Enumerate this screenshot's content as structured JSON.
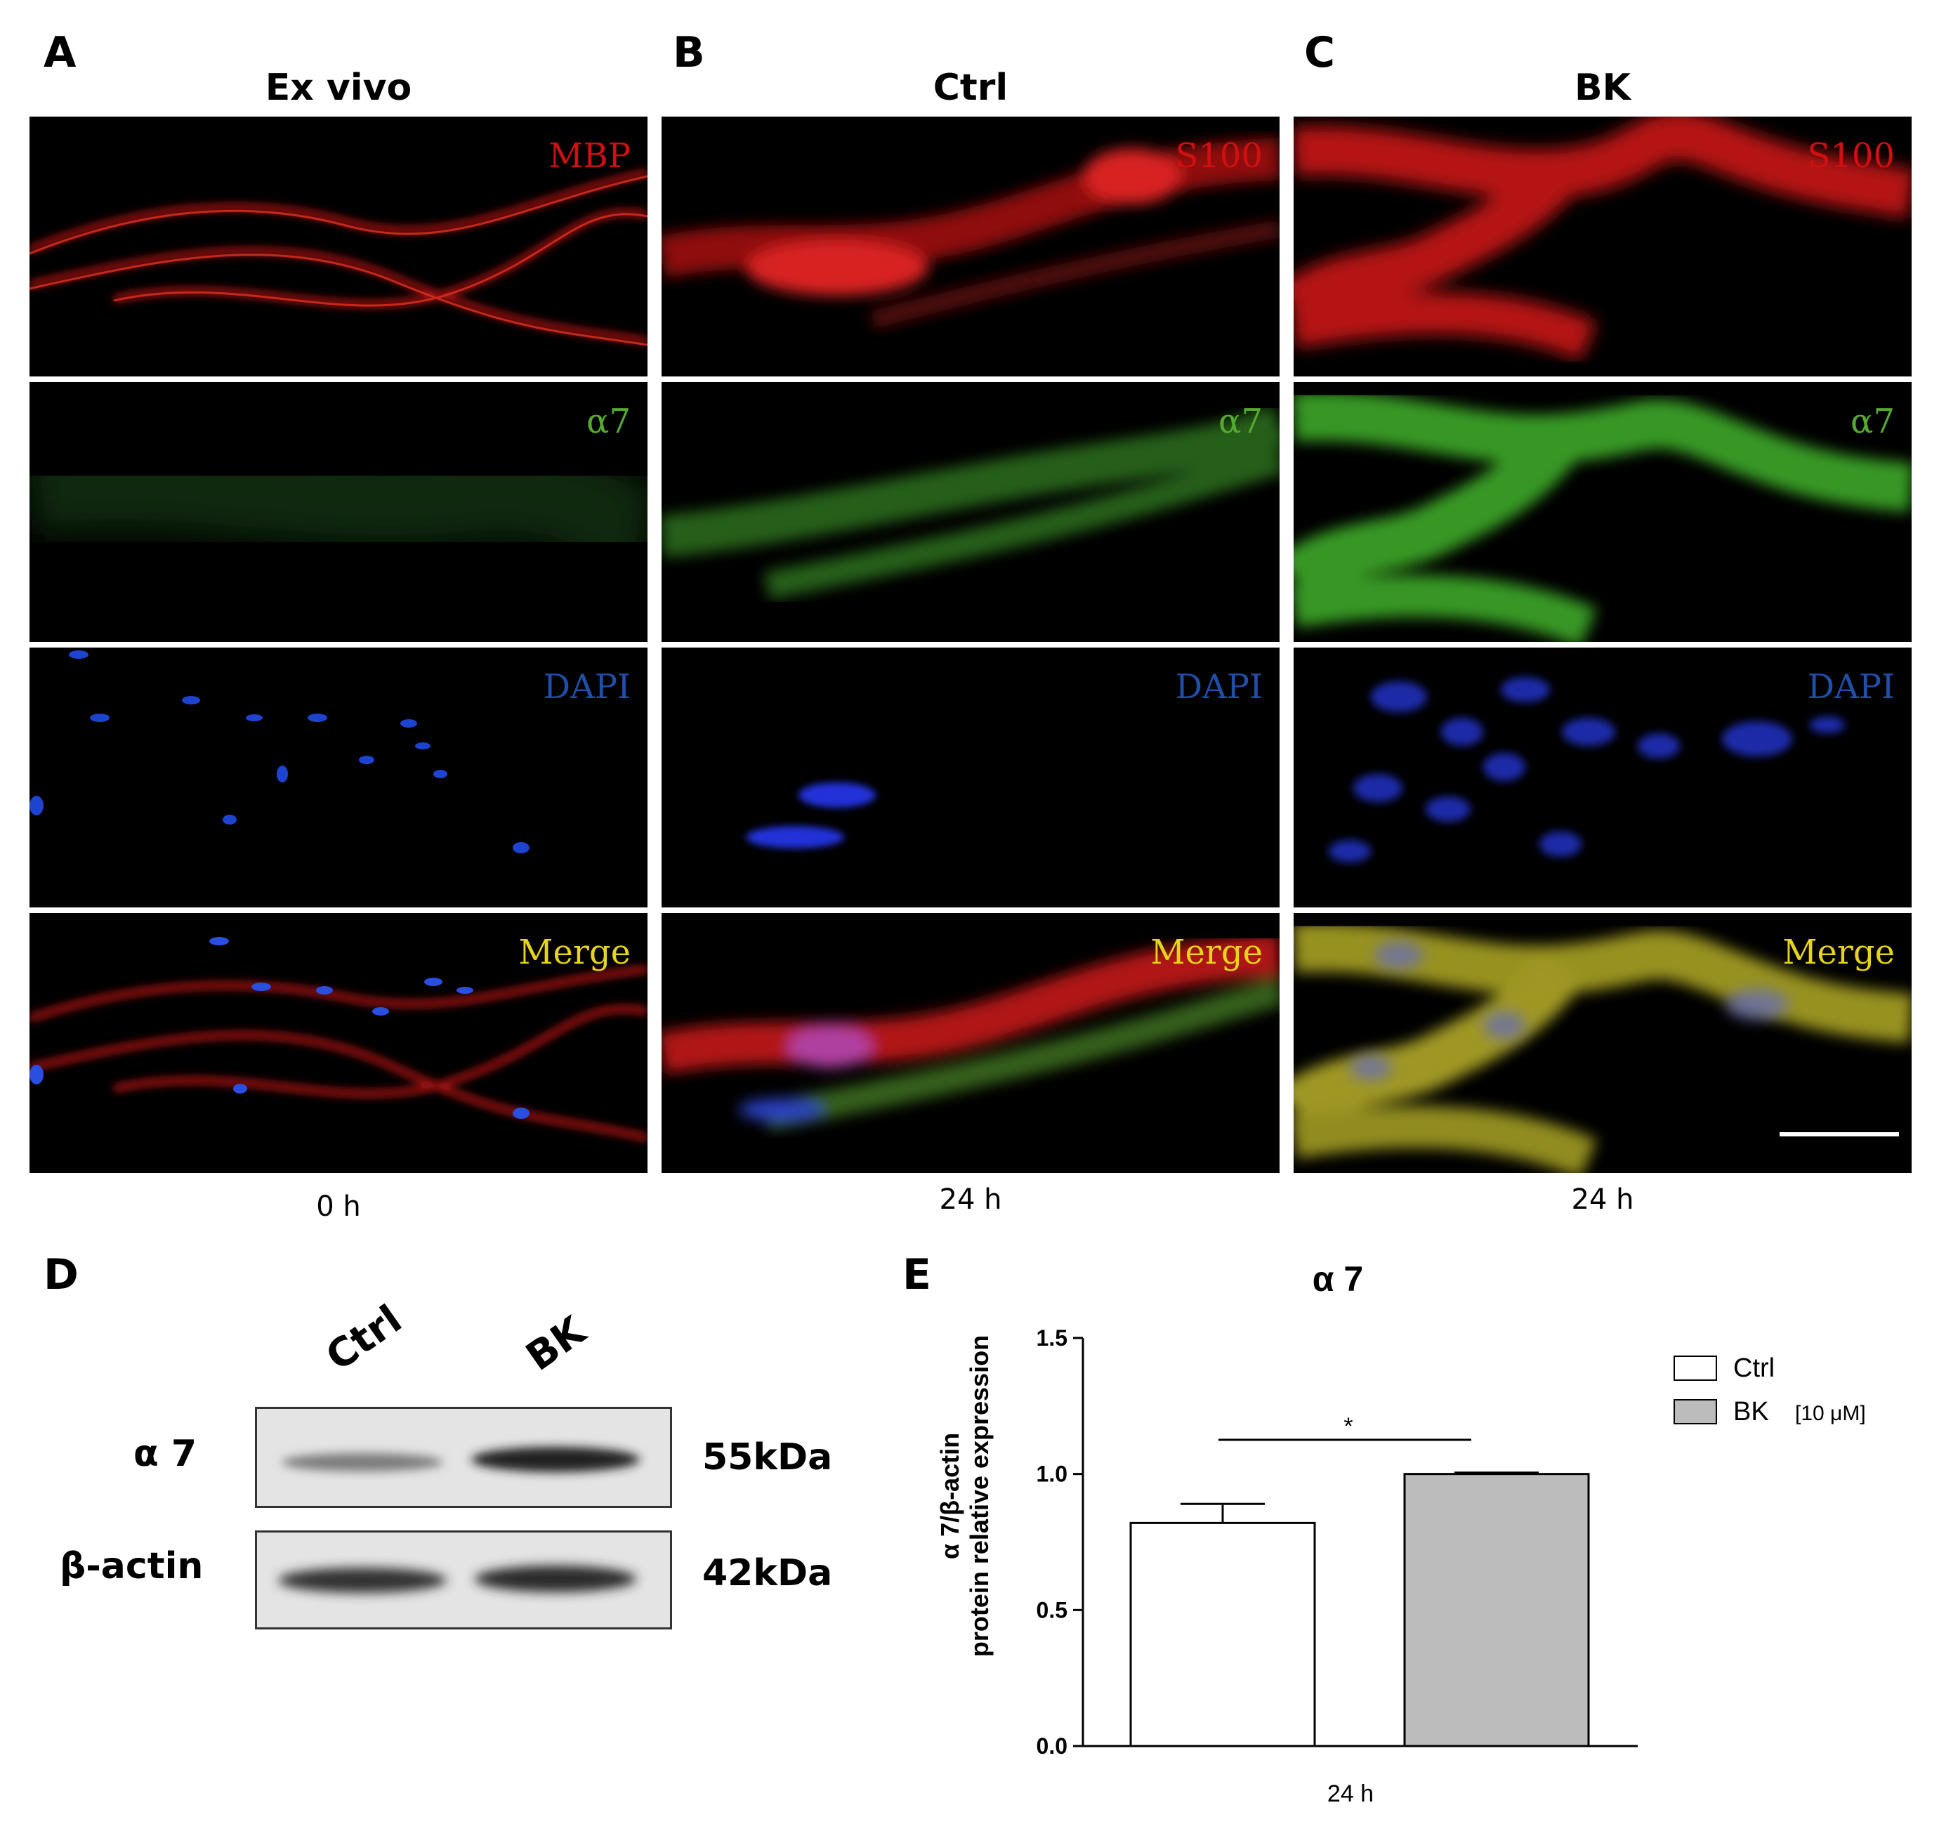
{
  "panels": {
    "A": {
      "letter": "A",
      "title": "Ex vivo",
      "time": "0 h",
      "labels": [
        "MBP",
        "α7",
        "DAPI",
        "Merge"
      ]
    },
    "B": {
      "letter": "B",
      "title": "Ctrl",
      "time": "24 h",
      "labels": [
        "S100",
        "α7",
        "DAPI",
        "Merge"
      ]
    },
    "C": {
      "letter": "C",
      "title": "BK",
      "time": "24 h",
      "labels": [
        "S100",
        "α7",
        "DAPI",
        "Merge"
      ]
    }
  },
  "channel_colors": {
    "red": "#d01010",
    "green": "#55a830",
    "blue": "#1f4fa8",
    "yellow": "#e6d41a"
  },
  "blot": {
    "letter": "D",
    "lanes": [
      "Ctrl",
      "BK"
    ],
    "rows": [
      {
        "protein": "α 7",
        "size": "55kDa"
      },
      {
        "protein": "β-actin",
        "size": "42kDa"
      }
    ]
  },
  "chart_data": {
    "letter": "E",
    "type": "bar",
    "title": "α 7",
    "ylabel_line1": "α 7/β-actin",
    "ylabel_line2": "protein relative expression",
    "xlabel": "24 h",
    "ylim": [
      0,
      1.5
    ],
    "yticks": [
      "0.0",
      "0.5",
      "1.0",
      "1.5"
    ],
    "categories": [
      "Ctrl",
      "BK"
    ],
    "values": [
      0.82,
      1.0
    ],
    "errors": [
      0.07,
      0.005
    ],
    "significance": "*",
    "legend": [
      {
        "name": "Ctrl",
        "note": "",
        "color": "#ffffff"
      },
      {
        "name": "BK",
        "note": "[10 μM]",
        "color": "#bcbcbc"
      }
    ],
    "legend_position": "top-right",
    "grid": false
  }
}
